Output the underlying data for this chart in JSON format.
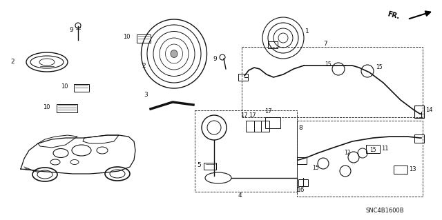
{
  "background_color": "#ffffff",
  "diagram_code": "SNC4B1600B",
  "line_color": "#111111",
  "text_color": "#111111"
}
